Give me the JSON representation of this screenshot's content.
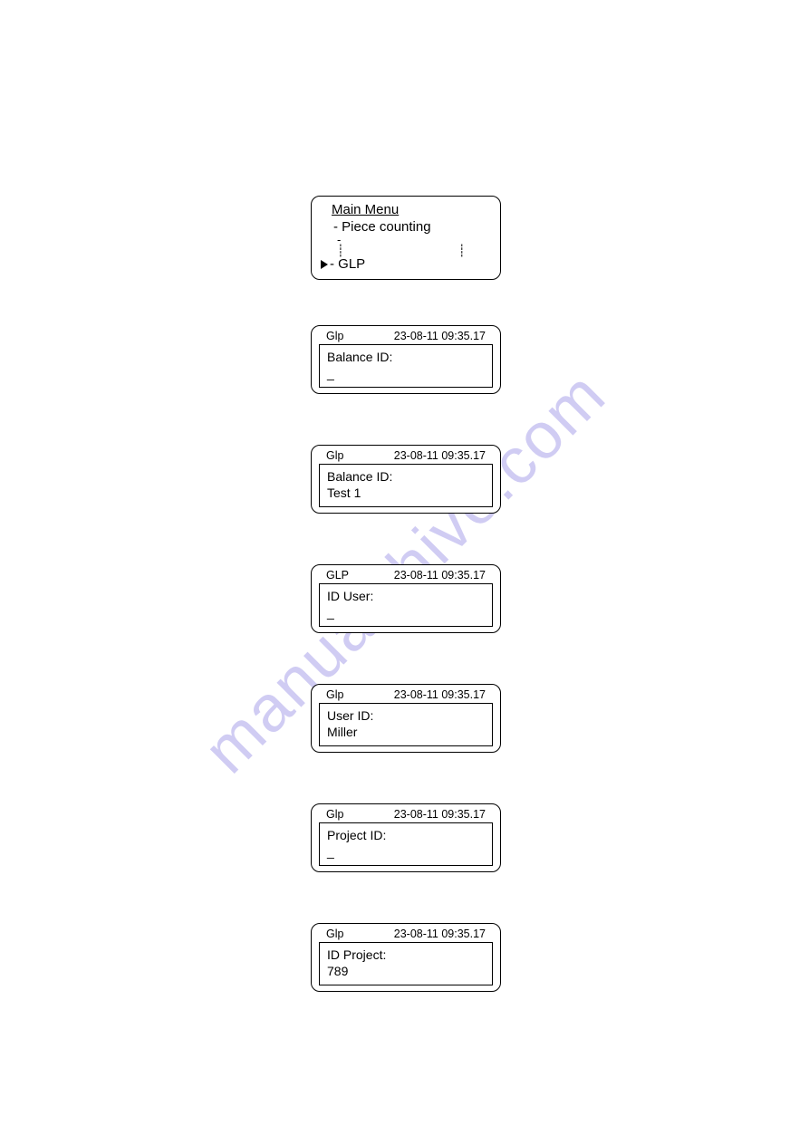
{
  "watermark_text": "manualshive.com",
  "menu": {
    "title": "Main Menu",
    "item1": "- Piece counting",
    "dotted": "- ¦       ¦",
    "selected": "- GLP"
  },
  "timestamp": "23-08-11 09:35.17",
  "screens": [
    {
      "header": "Glp",
      "label": "Balance ID:",
      "value": "_"
    },
    {
      "header": "Glp",
      "label": "Balance ID:",
      "value": "Test 1"
    },
    {
      "header": "GLP",
      "label": "ID User:",
      "value": "_"
    },
    {
      "header": "Glp",
      "label": "User ID:",
      "value": "Miller"
    },
    {
      "header": "Glp",
      "label": "Project ID:",
      "value": "_"
    },
    {
      "header": "Glp",
      "label": "ID Project:",
      "value": "789"
    }
  ]
}
